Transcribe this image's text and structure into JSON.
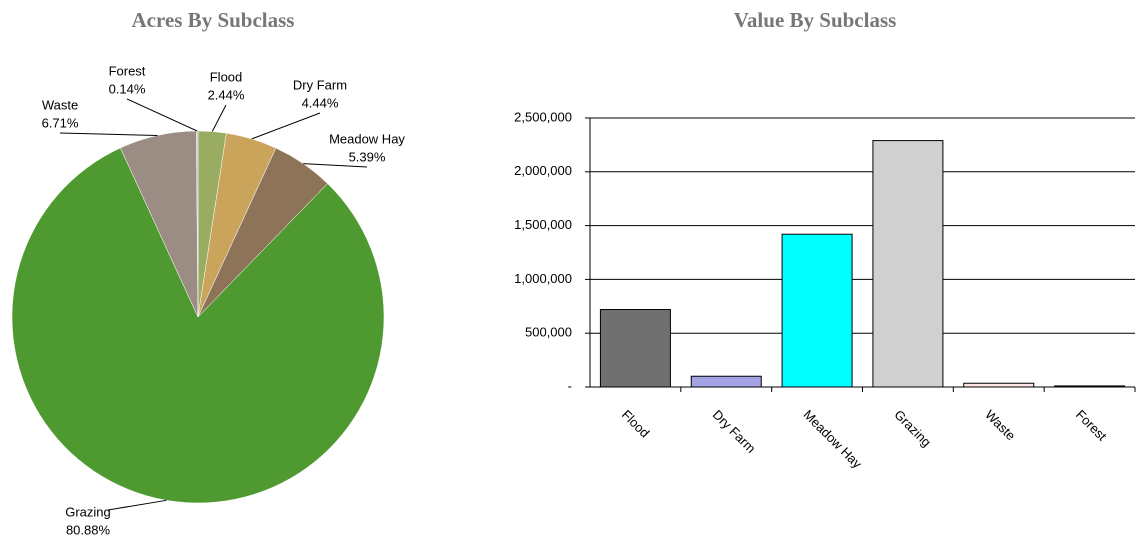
{
  "chart_data": [
    {
      "type": "pie",
      "title": "Acres By Subclass",
      "categories": [
        "Flood",
        "Dry Farm",
        "Meadow Hay",
        "Grazing",
        "Waste",
        "Forest"
      ],
      "values": [
        2.44,
        4.44,
        5.39,
        80.88,
        6.71,
        0.14
      ],
      "value_labels": [
        "2.44%",
        "4.44%",
        "5.39%",
        "80.88%",
        "6.71%",
        "0.14%"
      ],
      "colors": [
        "#9aab62",
        "#c9a45a",
        "#8d7458",
        "#4f9a30",
        "#9b8c84",
        "#b8c4b4"
      ]
    },
    {
      "type": "bar",
      "title": "Value By Subclass",
      "categories": [
        "Flood",
        "Dry Farm",
        "Meadow Hay",
        "Grazing",
        "Waste",
        "Forest"
      ],
      "values": [
        720000,
        100000,
        1420000,
        2290000,
        35000,
        10000
      ],
      "colors": [
        "#707070",
        "#a4a4e4",
        "#00ffff",
        "#d0d0d0",
        "#ffe4e4",
        "#404040"
      ],
      "ylim": [
        0,
        2500000
      ],
      "yticks": [
        {
          "value": 0,
          "label": "-"
        },
        {
          "value": 500000,
          "label": "500,000"
        },
        {
          "value": 1000000,
          "label": "1,000,000"
        },
        {
          "value": 1500000,
          "label": "1,500,000"
        },
        {
          "value": 2000000,
          "label": "2,000,000"
        },
        {
          "value": 2500000,
          "label": "2,500,000"
        }
      ],
      "grid": true
    }
  ]
}
